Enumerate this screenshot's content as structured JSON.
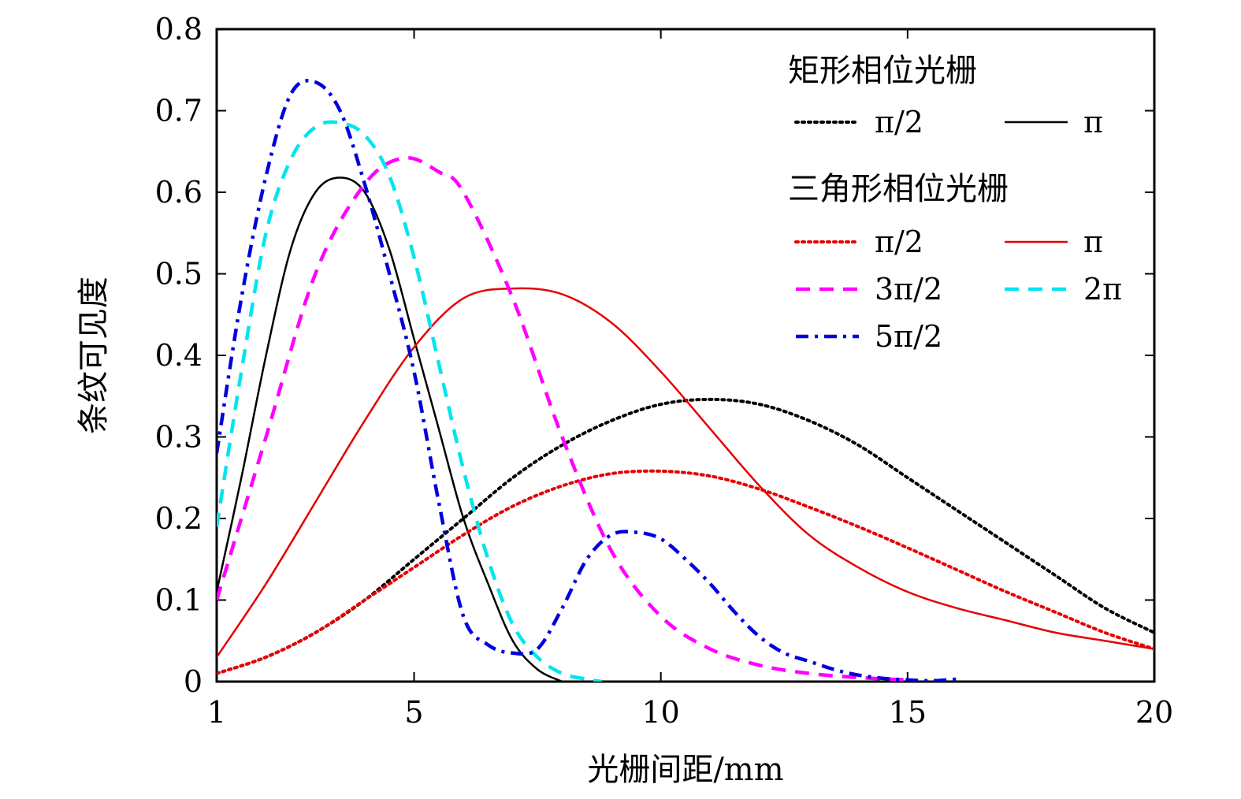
{
  "chart_data": {
    "type": "line",
    "title": "",
    "xlabel": "光栅间距/mm",
    "ylabel": "条纹可见度",
    "xlim": [
      1,
      20
    ],
    "ylim": [
      0,
      0.8
    ],
    "xticks": [
      1,
      5,
      10,
      15,
      20
    ],
    "xtick_labels": [
      "1",
      "5",
      "10",
      "15",
      "20"
    ],
    "yticks": [
      0,
      0.1,
      0.2,
      0.3,
      0.4,
      0.5,
      0.6,
      0.7,
      0.8
    ],
    "ytick_labels": [
      "0",
      "0.1",
      "0.2",
      "0.3",
      "0.4",
      "0.5",
      "0.6",
      "0.7",
      "0.8"
    ],
    "grid": false,
    "legend_placement": "top-right",
    "legend_groups": [
      {
        "title": "矩形相位光栅",
        "series_indices": [
          0,
          1
        ]
      },
      {
        "title": "三角形相位光栅",
        "series_indices": [
          2,
          3,
          4,
          5,
          6
        ]
      }
    ],
    "series": [
      {
        "name": "π/2",
        "group": "矩形相位光栅",
        "color": "#000000",
        "style": "dotted",
        "x": [
          1,
          2,
          3,
          4,
          5,
          6,
          7,
          8,
          9,
          10,
          11,
          12,
          13,
          14,
          15,
          16,
          17,
          18,
          19,
          20
        ],
        "y": [
          0.01,
          0.03,
          0.06,
          0.1,
          0.15,
          0.2,
          0.25,
          0.29,
          0.32,
          0.34,
          0.346,
          0.34,
          0.32,
          0.29,
          0.25,
          0.21,
          0.17,
          0.13,
          0.09,
          0.06
        ]
      },
      {
        "name": "π",
        "group": "矩形相位光栅",
        "color": "#000000",
        "style": "solid",
        "x": [
          1,
          1.5,
          2,
          2.5,
          3,
          3.5,
          4,
          4.5,
          5,
          5.5,
          6,
          6.5,
          7,
          7.5,
          8
        ],
        "y": [
          0.11,
          0.25,
          0.4,
          0.53,
          0.6,
          0.618,
          0.6,
          0.53,
          0.42,
          0.31,
          0.2,
          0.12,
          0.05,
          0.015,
          0
        ]
      },
      {
        "name": "π/2",
        "group": "三角形相位光栅",
        "color": "#e60000",
        "style": "dotted",
        "x": [
          1,
          2,
          3,
          4,
          5,
          6,
          7,
          8,
          9,
          10,
          11,
          12,
          13,
          14,
          15,
          16,
          17,
          18,
          19,
          20
        ],
        "y": [
          0.01,
          0.03,
          0.06,
          0.1,
          0.14,
          0.18,
          0.215,
          0.24,
          0.255,
          0.258,
          0.252,
          0.236,
          0.214,
          0.19,
          0.164,
          0.137,
          0.11,
          0.085,
          0.06,
          0.04
        ]
      },
      {
        "name": "π",
        "group": "三角形相位光栅",
        "color": "#e60000",
        "style": "solid",
        "x": [
          1,
          2,
          3,
          4,
          5,
          6,
          7,
          8,
          9,
          10,
          11,
          12,
          13,
          14,
          15,
          16,
          17,
          18,
          19,
          20
        ],
        "y": [
          0.03,
          0.12,
          0.22,
          0.32,
          0.41,
          0.47,
          0.482,
          0.475,
          0.44,
          0.38,
          0.31,
          0.24,
          0.18,
          0.14,
          0.11,
          0.09,
          0.075,
          0.06,
          0.05,
          0.04
        ]
      },
      {
        "name": "3π/2",
        "group": "三角形相位光栅",
        "color": "#ff00ff",
        "style": "dashed",
        "x": [
          1,
          2,
          3,
          4,
          4.8,
          5.5,
          6,
          7,
          8,
          9,
          10,
          11,
          12,
          13,
          14,
          15
        ],
        "y": [
          0.1,
          0.3,
          0.5,
          0.61,
          0.642,
          0.625,
          0.6,
          0.47,
          0.3,
          0.16,
          0.08,
          0.04,
          0.02,
          0.01,
          0.005,
          0.002
        ]
      },
      {
        "name": "2π",
        "group": "三角形相位光栅",
        "color": "#00e5ee",
        "style": "dashed",
        "x": [
          1,
          1.5,
          2,
          2.5,
          3,
          3.5,
          4,
          4.5,
          5,
          5.5,
          6,
          6.5,
          7,
          7.5,
          8,
          8.5,
          8.8
        ],
        "y": [
          0.19,
          0.38,
          0.55,
          0.64,
          0.68,
          0.685,
          0.67,
          0.62,
          0.52,
          0.39,
          0.26,
          0.15,
          0.07,
          0.03,
          0.01,
          0.003,
          0
        ]
      },
      {
        "name": "5π/2",
        "group": "三角形相位光栅",
        "color": "#0000dd",
        "style": "dashdot",
        "x": [
          1,
          1.5,
          2,
          2.5,
          3,
          3.5,
          4,
          4.5,
          5,
          5.5,
          6,
          6.5,
          7,
          7.5,
          8,
          8.5,
          9,
          9.5,
          10,
          10.5,
          11,
          11.5,
          12,
          12.5,
          13,
          13.5,
          14,
          14.5,
          15,
          15.5,
          16
        ],
        "y": [
          0.28,
          0.47,
          0.62,
          0.72,
          0.735,
          0.7,
          0.61,
          0.5,
          0.38,
          0.22,
          0.08,
          0.045,
          0.035,
          0.04,
          0.09,
          0.15,
          0.18,
          0.183,
          0.175,
          0.15,
          0.12,
          0.085,
          0.055,
          0.035,
          0.025,
          0.015,
          0.008,
          0.004,
          0.002,
          0.001,
          0.003
        ]
      }
    ]
  }
}
